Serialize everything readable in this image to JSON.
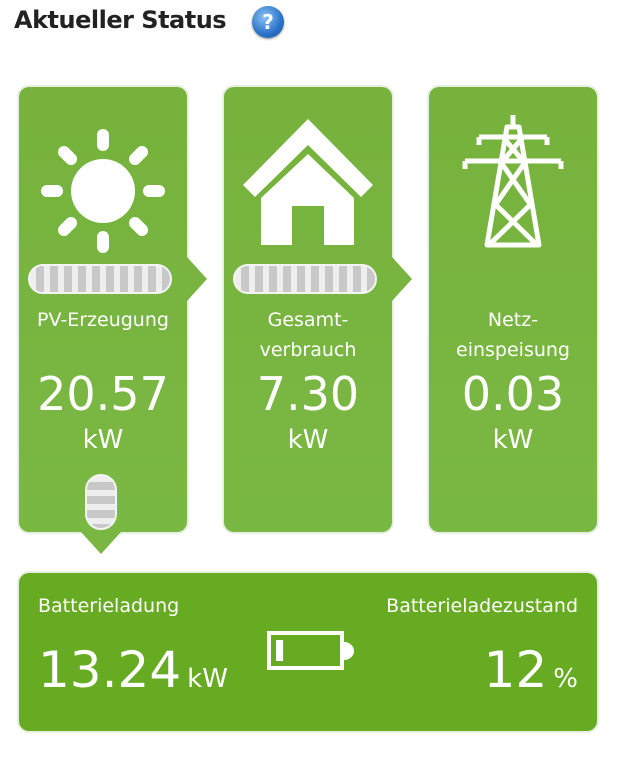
{
  "header": {
    "title": "Aktueller Status",
    "help_icon": "?"
  },
  "cards": [
    {
      "icon": "sun-icon",
      "label": "PV-Erzeugung",
      "value": "20.57",
      "unit": "kW"
    },
    {
      "icon": "house-icon",
      "label": "Gesamt-\nverbrauch",
      "label_line1": "Gesamt-",
      "label_line2": "verbrauch",
      "value": "7.30",
      "unit": "kW"
    },
    {
      "icon": "power-pylon-icon",
      "label_line1": "Netz-",
      "label_line2": "einspeisung",
      "value": "0.03",
      "unit": "kW"
    }
  ],
  "battery": {
    "charge_label": "Batterieladung",
    "charge_value": "13.24",
    "charge_unit": "kW",
    "soc_label": "Batterieladezustand",
    "soc_value": "12",
    "soc_unit": "%",
    "soc_fraction": 0.12
  },
  "colors": {
    "card_green": "#78b43f",
    "battery_green": "#67ab22",
    "help_blue": "#2a72c8"
  }
}
